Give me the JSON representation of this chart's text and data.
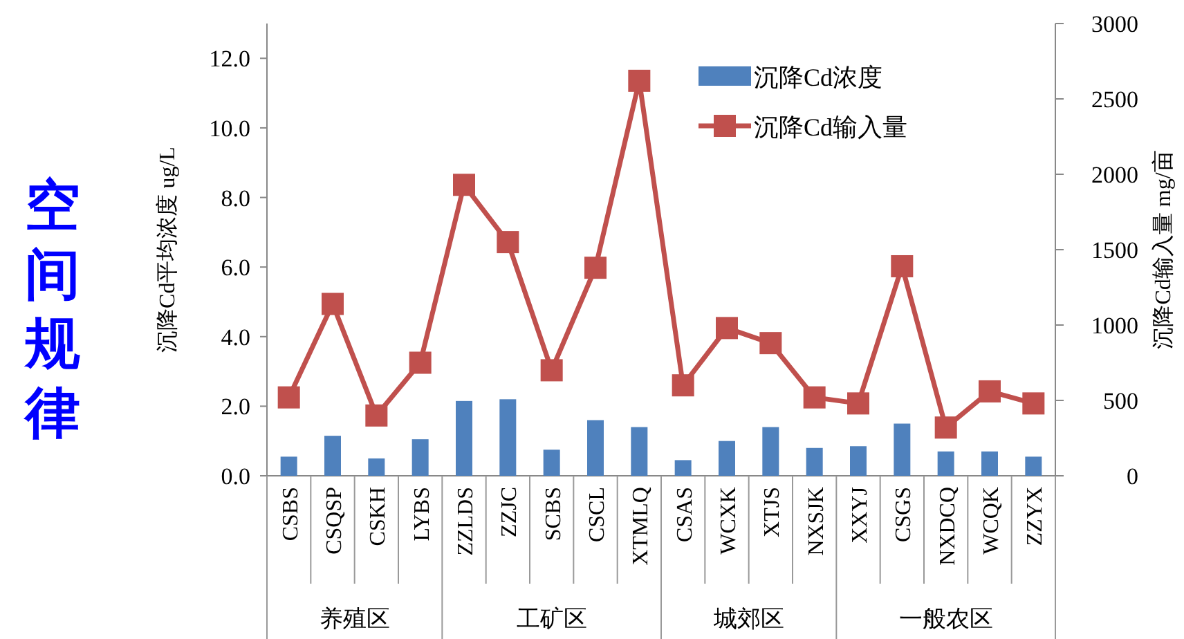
{
  "chart_data": {
    "type": "bar",
    "title": "空间规律",
    "ylabel": "沉降Cd平均浓度 ug/L",
    "y2label": "沉降Cd输入量 mg/亩",
    "categories": [
      "CSBS",
      "CSQSP",
      "CSKH",
      "LYBS",
      "ZZLDS",
      "ZZJC",
      "SCBS",
      "CSCL",
      "XTMLQ",
      "CSAS",
      "WCXK",
      "XTJS",
      "NXSJK",
      "XXYJ",
      "CSGS",
      "NXDCQ",
      "WCQK",
      "ZZYX"
    ],
    "series": [
      {
        "name": "沉降Cd浓度",
        "color": "#4f81bd",
        "values": [
          0.55,
          1.15,
          0.5,
          1.05,
          2.15,
          2.2,
          0.75,
          1.6,
          1.4,
          0.45,
          1.0,
          1.4,
          0.8,
          0.85,
          1.5,
          0.7,
          0.7,
          0.55
        ]
      },
      {
        "name": "沉降Cd输入量",
        "type": "line",
        "axis": "y2",
        "color": "#c0504d",
        "marker": "square",
        "values": [
          520,
          1140,
          400,
          750,
          1930,
          1550,
          700,
          1380,
          2620,
          600,
          980,
          880,
          520,
          480,
          1390,
          320,
          560,
          480
        ]
      }
    ],
    "annotations": [
      "养殖区",
      "工矿区",
      "城郊区",
      "一般农区"
    ],
    "ylim": [
      0,
      13
    ],
    "yticks": [
      {
        "value": 0,
        "label": "0.0"
      },
      {
        "value": 2,
        "label": "2.0"
      },
      {
        "value": 4,
        "label": "4.0"
      },
      {
        "value": 6,
        "label": "6.0"
      },
      {
        "value": 8,
        "label": "8.0"
      },
      {
        "value": 10,
        "label": "10.0"
      },
      {
        "value": 12,
        "label": "12.0"
      }
    ],
    "y2lim": [
      0,
      3000
    ],
    "y2ticks": [
      0,
      500,
      1000,
      1500,
      2000,
      2500,
      3000
    ],
    "legend": "top right",
    "grid": false
  }
}
